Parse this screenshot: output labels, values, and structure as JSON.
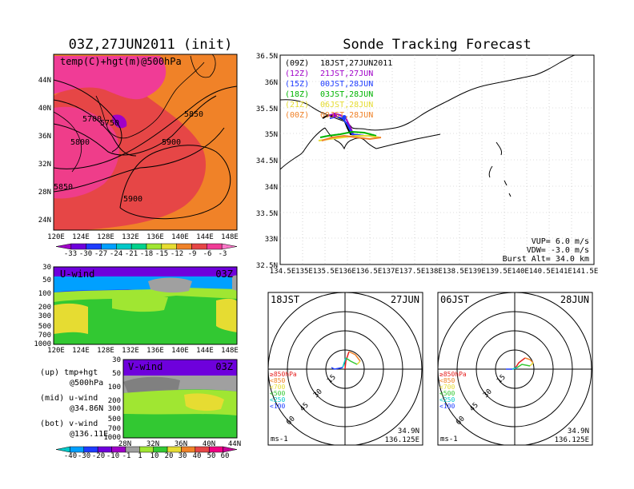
{
  "titles": {
    "left": "03Z,27JUN2011 (init)",
    "right": "Sonde Tracking Forecast"
  },
  "top_map": {
    "var_label": "temp(C)+hgt(m)@500hPa",
    "lat_labels": [
      "44N",
      "40N",
      "36N",
      "32N",
      "28N",
      "24N"
    ],
    "lon_labels": [
      "120E",
      "124E",
      "128E",
      "132E",
      "136E",
      "140E",
      "144E",
      "148E"
    ],
    "contour_labels": [
      "5700",
      "5750",
      "5800",
      "5850",
      "5900",
      "5850",
      "5900"
    ],
    "colorbar_ticks": [
      "-33",
      "-30",
      "-27",
      "-24",
      "-21",
      "-18",
      "-15",
      "-12",
      "-9",
      "-6",
      "-3"
    ],
    "colorbar_colors": [
      "#a000c8",
      "#6e00dc",
      "#1e3cff",
      "#00a0ff",
      "#00c8c8",
      "#00d28c",
      "#a0e632",
      "#e6dc32",
      "#f08228",
      "#e64646",
      "#f03c96",
      "#fa78c8"
    ]
  },
  "u_wind": {
    "label": "U-wind",
    "time": "03Z",
    "p_labels": [
      "30",
      "50",
      "100",
      "200",
      "300",
      "500",
      "700",
      "1000"
    ],
    "lon_labels": [
      "120E",
      "124E",
      "128E",
      "132E",
      "136E",
      "140E",
      "144E",
      "148E"
    ]
  },
  "v_wind": {
    "label": "V-wind",
    "time": "03Z",
    "p_labels": [
      "30",
      "50",
      "100",
      "200",
      "300",
      "500",
      "700",
      "1000"
    ],
    "lat_labels": [
      "28N",
      "32N",
      "36N",
      "40N",
      "44N"
    ]
  },
  "notes": [
    {
      "a": "(up)  tmp+hgt",
      "b": "@500hPa"
    },
    {
      "a": "(mid)  u-wind",
      "b": "@34.86N"
    },
    {
      "a": "(bot)  v-wind",
      "b": "@136.11E"
    }
  ],
  "wind_colorbar": {
    "ticks": [
      "-40",
      "-30",
      "-20",
      "-10",
      "-1",
      "1",
      "10",
      "20",
      "30",
      "40",
      "50",
      "60"
    ],
    "colors": [
      "#00c8c8",
      "#00a0ff",
      "#1e3cff",
      "#6e00dc",
      "#a000c8",
      "#a0a0a0",
      "#a0e632",
      "#32c832",
      "#e6dc32",
      "#f08228",
      "#e64646",
      "#f00082",
      "#c80096"
    ]
  },
  "track_map": {
    "lat_labels": [
      "36.5N",
      "36N",
      "35.5N",
      "35N",
      "34.5N",
      "34N",
      "33.5N",
      "33N",
      "32.5N"
    ],
    "lon_labels": [
      "134.5E",
      "135E",
      "135.5E",
      "136E",
      "136.5E",
      "137E",
      "137.5E",
      "138E",
      "138.5E",
      "139E",
      "139.5E",
      "140E",
      "140.5E",
      "141E",
      "141.5E"
    ],
    "legend": [
      {
        "z": "(09Z)",
        "t": "18JST,27JUN2011",
        "color": "#000000"
      },
      {
        "z": "(12Z)",
        "t": "21JST,27JUN",
        "color": "#a000c8"
      },
      {
        "z": "(15Z)",
        "t": "00JST,28JUN",
        "color": "#1e3cff"
      },
      {
        "z": "(18Z)",
        "t": "03JST,28JUN",
        "color": "#00b400"
      },
      {
        "z": "(21Z)",
        "t": "06JST,28JUN",
        "color": "#e6dc32"
      },
      {
        "z": "(00Z)",
        "t": "09JST,28JUN",
        "color": "#f08228"
      }
    ],
    "params": [
      "VUP=  6.0 m/s",
      "VDW= -3.0 m/s",
      "Burst Alt= 34.0 km"
    ]
  },
  "hodographs": [
    {
      "time": "18JST",
      "date": "27JUN",
      "rings": [
        "15",
        "30",
        "45",
        "60"
      ],
      "unit": "ms-1",
      "lat": "34.9N",
      "lon": "136.125E"
    },
    {
      "time": "06JST",
      "date": "28JUN",
      "rings": [
        "15",
        "30",
        "45",
        "60"
      ],
      "unit": "ms-1",
      "lat": "34.9N",
      "lon": "136.125E"
    }
  ],
  "hodo_legend": [
    {
      "label": "≥850hPa",
      "color": "#e62020"
    },
    {
      "label": "<850",
      "color": "#f08228"
    },
    {
      "label": "<700",
      "color": "#e6dc32"
    },
    {
      "label": "<500",
      "color": "#32c832"
    },
    {
      "label": "<250",
      "color": "#00c8c8"
    },
    {
      "label": "<100",
      "color": "#1e3cff"
    }
  ]
}
